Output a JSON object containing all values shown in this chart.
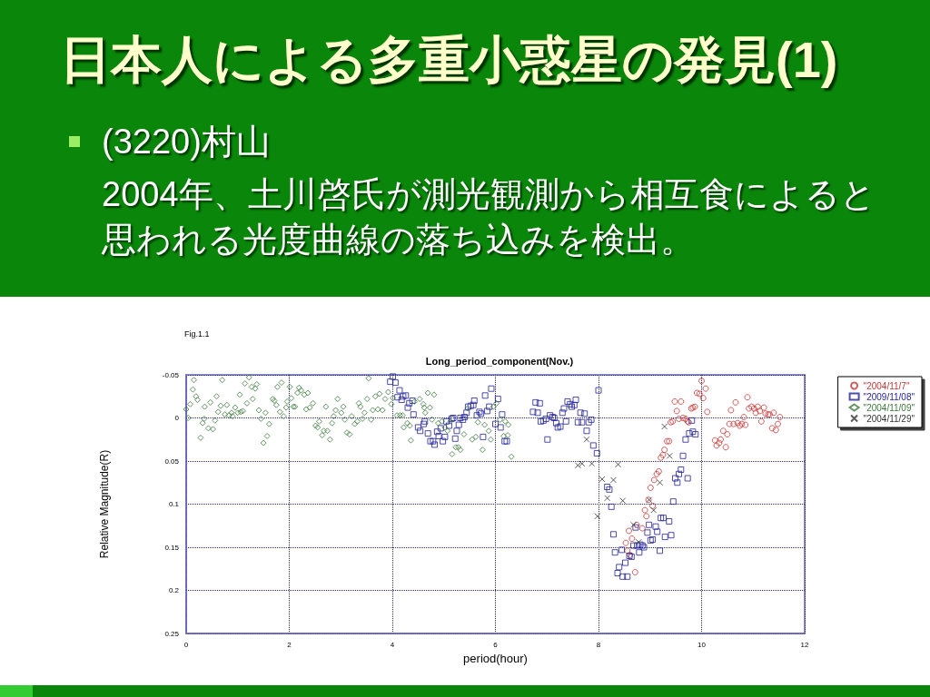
{
  "chart_data": {
    "type": "scatter",
    "title": "日本人による多重小惑星の発見(1)",
    "subtitle": "Long_period_component(Nov.)",
    "annotations": [
      "(3220)村山",
      "2004年、土川啓氏が測光観測から相互食によると思われる光度曲線の落ち込みを検出。",
      "Fig.1.1"
    ],
    "xlabel": "period(hour)",
    "ylabel": "Relative Magnitude(R)",
    "xlim": [
      0,
      12
    ],
    "xticks": [
      0,
      2,
      4,
      6,
      8,
      10,
      12
    ],
    "ylim": [
      0.25,
      -0.05
    ],
    "yticks": [
      -0.05,
      0,
      0.05,
      0.1,
      0.15,
      0.2,
      0.25
    ],
    "grid": true,
    "legend": "top right",
    "series": [
      {
        "name": "\"2004/11/7\"",
        "color": "#cc3333",
        "marker": "circle",
        "x": [
          8.53,
          8.56,
          8.59,
          8.61,
          8.65,
          8.71,
          8.74,
          8.85,
          8.9,
          8.93,
          8.97,
          9.01,
          9.05,
          9.08,
          9.13,
          9.17,
          9.21,
          9.25,
          9.28,
          9.33,
          9.37,
          9.4,
          9.44,
          9.48,
          9.52,
          9.56,
          9.6,
          9.64,
          9.69,
          9.73,
          9.75,
          9.8,
          9.83,
          9.87,
          9.91,
          9.96,
          10.0,
          10.03,
          10.08,
          10.11,
          10.26,
          10.29,
          10.34,
          10.37,
          10.42,
          10.47,
          10.5,
          10.54,
          10.57,
          10.62,
          10.66,
          10.7,
          10.74,
          10.78,
          10.82,
          10.85,
          10.89,
          10.92,
          10.97,
          11.02,
          11.05,
          11.09,
          11.13,
          11.16,
          11.21,
          11.24,
          11.29,
          11.32,
          11.37,
          11.4,
          11.44,
          11.48,
          11.52
        ],
        "values": [
          0.145,
          0.154,
          0.131,
          0.159,
          0.14,
          0.179,
          0.124,
          0.128,
          0.107,
          0.114,
          0.095,
          0.081,
          0.102,
          0.072,
          0.065,
          0.062,
          0.046,
          0.043,
          0.037,
          0.027,
          0.027,
          0.005,
          0.004,
          -0.019,
          -0.008,
          0.001,
          -0.019,
          0.0,
          0.001,
          0.004,
          0.005,
          -0.011,
          -0.012,
          -0.013,
          -0.029,
          -0.028,
          -0.043,
          -0.023,
          -0.034,
          -0.007,
          0.026,
          0.032,
          0.029,
          0.025,
          0.015,
          0.034,
          0.019,
          0.007,
          -0.009,
          0.007,
          -0.018,
          0.006,
          0.009,
          0.007,
          -0.001,
          0.008,
          -0.024,
          -0.011,
          -0.013,
          -0.011,
          -0.006,
          -0.013,
          -0.008,
          0.004,
          -0.012,
          -0.005,
          -0.004,
          -0.004,
          0.012,
          -0.006,
          0.014,
          0.007,
          -0.001
        ]
      },
      {
        "name": "\"2009/11/08\"",
        "color": "#22229a",
        "marker": "square",
        "x": [
          4.01,
          3.96,
          4.06,
          4.14,
          4.1,
          4.18,
          4.21,
          4.26,
          4.3,
          4.33,
          4.39,
          4.41,
          4.5,
          4.54,
          4.61,
          4.63,
          4.69,
          4.74,
          4.79,
          4.82,
          4.87,
          4.9,
          4.94,
          4.98,
          5.02,
          5.05,
          5.1,
          5.15,
          5.18,
          5.22,
          5.25,
          5.29,
          5.32,
          5.37,
          5.4,
          5.44,
          5.47,
          5.52,
          5.57,
          5.59,
          5.64,
          5.69,
          5.72,
          5.76,
          5.8,
          5.84,
          5.88,
          5.92,
          6.0,
          6.05,
          6.1,
          6.13,
          6.18,
          6.22,
          6.73,
          6.78,
          6.82,
          6.86,
          6.88,
          6.93,
          6.98,
          7.01,
          7.06,
          7.11,
          7.14,
          7.18,
          7.21,
          7.26,
          7.3,
          7.33,
          7.37,
          7.4,
          7.45,
          7.48,
          7.53,
          7.56,
          7.6,
          7.65,
          7.68,
          7.73,
          7.77,
          7.81,
          7.86,
          7.9,
          7.97,
          8.0,
          8.17,
          8.21,
          8.25,
          8.29,
          8.32,
          8.37,
          8.4,
          8.45,
          8.47,
          8.52,
          8.56,
          8.6,
          8.64,
          8.68,
          8.72,
          8.75,
          8.79,
          8.81,
          8.85,
          8.88,
          8.95,
          8.98,
          9.01,
          9.05,
          9.11,
          9.14,
          9.19,
          9.21,
          9.26,
          9.29,
          9.37,
          9.41,
          9.45,
          9.49,
          9.53,
          9.56,
          9.6,
          9.64,
          9.69,
          9.73,
          9.76,
          9.81,
          9.83,
          9.88
        ],
        "values": [
          -0.048,
          -0.042,
          -0.041,
          -0.032,
          -0.024,
          -0.021,
          -0.025,
          -0.026,
          -0.012,
          -0.017,
          -0.02,
          -0.004,
          0.011,
          0.015,
          0.007,
          0.004,
          0.018,
          0.027,
          0.027,
          0.031,
          0.016,
          0.021,
          0.012,
          0.027,
          0.022,
          0.004,
          0.009,
          0.001,
          0.0,
          0.024,
          0.015,
          0.008,
          0.0,
          0.002,
          -0.001,
          -0.006,
          -0.013,
          -0.014,
          -0.015,
          -0.02,
          -0.003,
          -0.007,
          -0.005,
          0.022,
          -0.026,
          -0.008,
          -0.013,
          -0.034,
          0.007,
          -0.022,
          0.011,
          -0.004,
          0.027,
          0.027,
          -0.007,
          -0.018,
          -0.006,
          -0.017,
          0.004,
          0.003,
          0.001,
          0.025,
          -0.003,
          -0.001,
          0.0,
          0.006,
          0.011,
          0.01,
          -0.006,
          -0.011,
          0.004,
          -0.019,
          -0.016,
          -0.013,
          -0.015,
          -0.021,
          0.005,
          -0.006,
          0.005,
          -0.005,
          0.015,
          0.005,
          0.002,
          0.032,
          0.041,
          -0.032,
          0.08,
          0.083,
          0.103,
          0.135,
          0.156,
          0.18,
          0.173,
          0.153,
          0.184,
          0.168,
          0.184,
          0.16,
          0.161,
          0.148,
          0.127,
          0.148,
          0.156,
          0.147,
          0.148,
          0.15,
          0.133,
          0.124,
          0.142,
          0.141,
          0.126,
          0.132,
          0.154,
          0.116,
          0.116,
          0.138,
          0.12,
          0.136,
          0.097,
          0.07,
          0.075,
          0.065,
          0.06,
          0.044,
          0.025,
          0.07,
          0.018,
          0.003,
          0.016,
          0.019
        ]
      },
      {
        "name": "\"2004/11/09\"",
        "color": "#3c7a3c",
        "marker": "diamond",
        "x": [
          0.0,
          0.04,
          0.08,
          0.15,
          0.13,
          0.19,
          0.22,
          0.28,
          0.32,
          0.35,
          0.36,
          0.43,
          0.47,
          0.52,
          0.56,
          0.59,
          0.62,
          0.67,
          0.7,
          0.75,
          0.79,
          0.83,
          0.88,
          0.9,
          0.95,
          1.0,
          1.04,
          1.06,
          1.1,
          1.14,
          1.18,
          1.22,
          1.27,
          1.29,
          1.34,
          1.37,
          1.41,
          1.45,
          1.5,
          1.54,
          1.57,
          1.61,
          1.68,
          1.71,
          1.75,
          1.77,
          1.82,
          1.85,
          1.89,
          1.94,
          1.96,
          2.01,
          2.04,
          2.08,
          2.11,
          2.16,
          2.19,
          2.23,
          2.29,
          2.36,
          2.33,
          2.4,
          2.46,
          2.51,
          2.55,
          2.58,
          2.64,
          2.67,
          2.71,
          2.74,
          2.79,
          2.83,
          2.86,
          2.9,
          2.94,
          3.01,
          3.05,
          3.08,
          3.12,
          3.17,
          3.21,
          3.27,
          3.32,
          3.35,
          3.38,
          3.42,
          3.46,
          3.51,
          3.54,
          3.59,
          3.62,
          3.67,
          3.72,
          3.75,
          3.81,
          3.86,
          3.92,
          3.98,
          4.09,
          4.01,
          4.15,
          4.2,
          4.22,
          4.29,
          4.34,
          4.36,
          4.43,
          4.53,
          4.6,
          4.62,
          4.64,
          4.69,
          4.73,
          4.77,
          4.81,
          4.89,
          4.96,
          5.02,
          5.07,
          5.13,
          5.16,
          5.23,
          5.28,
          5.32,
          5.39,
          5.46,
          5.55,
          5.62,
          5.66,
          5.75,
          5.79,
          5.87,
          5.91,
          5.96,
          6.02,
          6.09,
          6.16,
          6.19,
          6.24,
          6.25,
          6.31
        ],
        "values": [
          -0.01,
          0.0,
          -0.016,
          -0.044,
          -0.033,
          -0.025,
          -0.021,
          0.023,
          0.006,
          0.001,
          -0.013,
          0.012,
          -0.018,
          0.013,
          0.003,
          -0.025,
          -0.007,
          -0.014,
          -0.044,
          -0.004,
          -0.015,
          -0.003,
          -0.006,
          -0.002,
          -0.012,
          -0.006,
          -0.027,
          -0.007,
          -0.008,
          -0.04,
          -0.017,
          -0.047,
          -0.036,
          -0.022,
          -0.034,
          -0.039,
          -0.009,
          0.001,
          0.029,
          -0.006,
          0.021,
          0.007,
          -0.022,
          -0.02,
          -0.015,
          -0.036,
          -0.007,
          -0.041,
          -0.002,
          -0.012,
          -0.019,
          -0.036,
          -0.023,
          -0.013,
          -0.013,
          -0.029,
          -0.035,
          -0.032,
          -0.027,
          -0.029,
          -0.01,
          -0.012,
          -0.017,
          0.009,
          0.011,
          0.004,
          0.02,
          0.015,
          -0.013,
          0.015,
          0.025,
          0.006,
          -0.002,
          -0.009,
          -0.022,
          -0.006,
          -0.013,
          0.002,
          0.017,
          0.019,
          -0.002,
          0.007,
          0.004,
          -0.017,
          -0.013,
          0.001,
          -0.006,
          -0.022,
          -0.046,
          0.002,
          -0.009,
          -0.025,
          -0.01,
          -0.028,
          -0.009,
          -0.022,
          -0.03,
          -0.016,
          -0.003,
          -0.023,
          -0.003,
          -0.003,
          0.011,
          0.006,
          0.009,
          0.026,
          -0.019,
          -0.022,
          -0.016,
          -0.012,
          -0.006,
          -0.029,
          -0.012,
          0.002,
          -0.027,
          0.006,
          0.004,
          0.011,
          0.015,
          0.004,
          0.042,
          0.034,
          0.034,
          0.037,
          0.019,
          -0.011,
          0.025,
          0.022,
          0.005,
          0.037,
          0.008,
          0.015,
          0.025,
          -0.013,
          -0.017,
          0.002,
          0.021,
          0.004,
          0.02,
          0.008,
          0.045
        ]
      },
      {
        "name": "\"2004/11/29\"",
        "color": "#333333",
        "marker": "cross",
        "x": [
          7.6,
          7.68,
          7.77,
          7.87,
          7.98,
          8.07,
          8.17,
          8.29,
          8.38,
          8.47,
          8.68,
          8.78,
          8.98,
          9.07,
          9.19,
          9.28,
          9.38
        ],
        "values": [
          0.055,
          0.053,
          0.025,
          0.053,
          0.114,
          0.071,
          0.093,
          0.072,
          0.054,
          0.096,
          0.124,
          0.144,
          0.095,
          0.107,
          0.075,
          0.01,
          0.044
        ]
      }
    ]
  }
}
